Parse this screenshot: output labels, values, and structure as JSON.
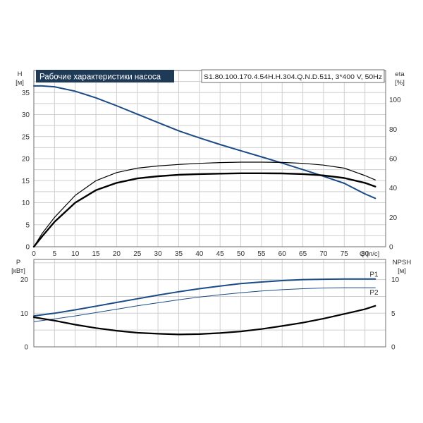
{
  "header": {
    "title": "Рабочие характеристики насоса",
    "model": "S1.80.100.170.4.54H.H.304.Q.N.D.511, 3*400 V, 50Hz"
  },
  "colors": {
    "header_bg": "#1e3a56",
    "blue_curve": "#1a4b86",
    "black_curve": "#000000",
    "grid": "#cfcfcf"
  },
  "chart_data": [
    {
      "id": "pump-performance",
      "type": "line",
      "title": "Рабочие характеристики насоса",
      "xlabel": "Q [л/с]",
      "ylabel_left": [
        "H",
        "[м]"
      ],
      "ylabel_right": [
        "eta",
        "[%]"
      ],
      "xlim": [
        0,
        85
      ],
      "ylim_left": [
        0,
        40
      ],
      "ylim_right": [
        0,
        120
      ],
      "x_ticks": [
        0,
        5,
        10,
        15,
        20,
        25,
        30,
        35,
        40,
        45,
        50,
        55,
        60,
        65,
        70,
        75,
        80
      ],
      "y_ticks_left": [
        0,
        5,
        10,
        15,
        20,
        25,
        30,
        35
      ],
      "y_ticks_right": [
        0,
        20,
        40,
        60,
        80,
        100
      ],
      "grid": true,
      "series": [
        {
          "axis": "left",
          "color": "#1a4b86",
          "width": 2,
          "x": [
            0,
            2,
            5,
            10,
            15,
            20,
            25,
            30,
            35,
            40,
            45,
            50,
            55,
            60,
            65,
            70,
            75,
            80,
            82.5
          ],
          "y": [
            36.5,
            36.5,
            36.3,
            35.3,
            33.8,
            32.0,
            30.1,
            28.2,
            26.3,
            24.7,
            23.2,
            21.8,
            20.4,
            19.0,
            17.5,
            16.0,
            14.4,
            12.0,
            11.0
          ]
        },
        {
          "axis": "right",
          "color": "#000000",
          "width": 1.2,
          "x": [
            0,
            2,
            5,
            10,
            15,
            20,
            25,
            30,
            35,
            40,
            45,
            50,
            55,
            60,
            65,
            70,
            75,
            80,
            82.5
          ],
          "y": [
            0,
            9,
            20,
            35,
            45,
            50.5,
            53.5,
            55,
            56,
            56.8,
            57.3,
            57.6,
            57.6,
            57.4,
            56.8,
            55.6,
            53.5,
            48.5,
            45.5
          ]
        },
        {
          "axis": "right",
          "color": "#000000",
          "width": 2.4,
          "x": [
            0,
            2,
            5,
            10,
            15,
            20,
            25,
            30,
            35,
            40,
            45,
            50,
            55,
            60,
            65,
            70,
            75,
            80,
            82.5
          ],
          "y": [
            0,
            7,
            17,
            30,
            38.5,
            43.5,
            46.5,
            48,
            49,
            49.5,
            49.8,
            50,
            50,
            49.9,
            49.5,
            48.6,
            46.8,
            43.5,
            41
          ]
        }
      ]
    },
    {
      "id": "power-npsh",
      "type": "line",
      "xlabel": "",
      "ylabel_left": [
        "P",
        "[кВт]"
      ],
      "ylabel_right": [
        "NPSH",
        "[м]"
      ],
      "xlim": [
        0,
        85
      ],
      "ylim_left": [
        0,
        26
      ],
      "ylim_right": [
        0,
        13
      ],
      "y_ticks_left": [
        0,
        10,
        20
      ],
      "y_ticks_right": [
        0,
        5,
        10
      ],
      "grid": true,
      "series": [
        {
          "name": "P1",
          "axis": "left",
          "color": "#1a4b86",
          "width": 2,
          "x": [
            0,
            5,
            10,
            15,
            20,
            25,
            30,
            35,
            40,
            45,
            50,
            55,
            60,
            65,
            70,
            75,
            80,
            82.5
          ],
          "y": [
            9.2,
            10.0,
            11.0,
            12.1,
            13.2,
            14.3,
            15.4,
            16.4,
            17.3,
            18.1,
            18.8,
            19.3,
            19.7,
            20.0,
            20.1,
            20.2,
            20.2,
            20.2
          ]
        },
        {
          "name": "P2",
          "axis": "left",
          "color": "#1a4b86",
          "width": 1,
          "x": [
            0,
            5,
            10,
            15,
            20,
            25,
            30,
            35,
            40,
            45,
            50,
            55,
            60,
            65,
            70,
            75,
            80,
            82.5
          ],
          "y": [
            7.5,
            8.3,
            9.2,
            10.2,
            11.2,
            12.2,
            13.1,
            14.0,
            14.8,
            15.5,
            16.1,
            16.6,
            17.0,
            17.3,
            17.5,
            17.6,
            17.6,
            17.6
          ]
        },
        {
          "axis": "right",
          "color": "#000000",
          "width": 2.2,
          "x": [
            0,
            5,
            10,
            15,
            20,
            25,
            30,
            35,
            40,
            45,
            50,
            55,
            60,
            65,
            70,
            75,
            80,
            82.5
          ],
          "y": [
            4.4,
            3.9,
            3.3,
            2.8,
            2.4,
            2.1,
            1.95,
            1.85,
            1.9,
            2.05,
            2.3,
            2.65,
            3.1,
            3.6,
            4.2,
            4.9,
            5.6,
            6.1
          ]
        }
      ]
    }
  ]
}
